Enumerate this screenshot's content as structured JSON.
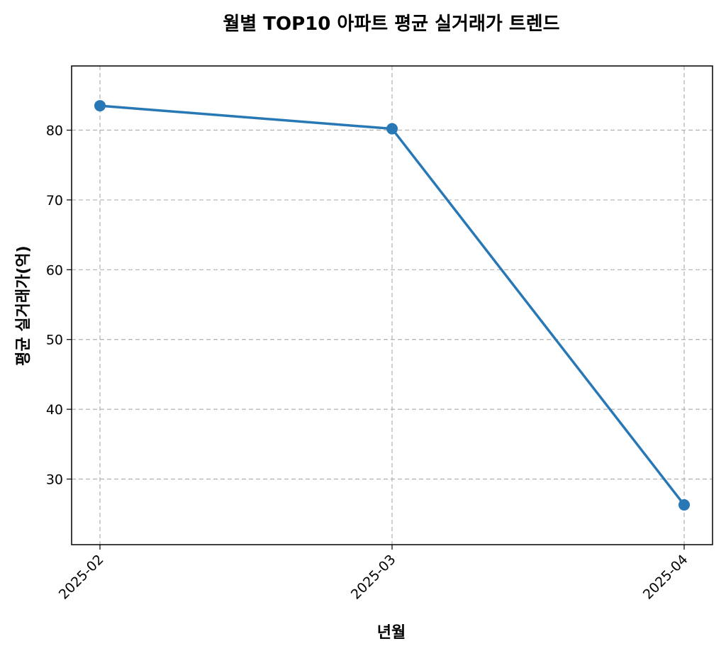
{
  "chart_data": {
    "type": "line",
    "title": "월별 TOP10 아파트 평균 실거래가 트렌드",
    "xlabel": "년월",
    "ylabel": "평균 실거래가(억)",
    "categories": [
      "2025-02",
      "2025-03",
      "2025-04"
    ],
    "series": [
      {
        "values": [
          83.5,
          80.2,
          26.3
        ],
        "color": "#2878b5",
        "marker": "circle"
      }
    ],
    "ylim": [
      20.6,
      89.2
    ],
    "yticks": [
      30,
      40,
      50,
      60,
      70,
      80
    ],
    "grid": true,
    "x_tick_rotation": -45
  }
}
